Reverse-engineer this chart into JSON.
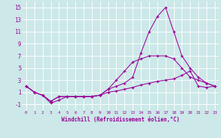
{
  "xlabel": "Windchill (Refroidissement éolien,°C)",
  "bg_color": "#cce8e8",
  "grid_color": "#ffffff",
  "line_color": "#990099",
  "xlim": [
    -0.5,
    23.5
  ],
  "ylim": [
    -2,
    16
  ],
  "xticks": [
    0,
    1,
    2,
    3,
    4,
    5,
    6,
    7,
    8,
    9,
    10,
    11,
    12,
    13,
    14,
    15,
    16,
    17,
    18,
    19,
    20,
    21,
    22,
    23
  ],
  "yticks": [
    -1,
    1,
    3,
    5,
    7,
    9,
    11,
    13,
    15
  ],
  "line1_x": [
    0,
    1,
    2,
    3,
    4,
    5,
    6,
    7,
    8,
    9,
    10,
    11,
    12,
    13,
    14,
    15,
    16,
    17,
    18,
    19,
    20,
    21,
    22,
    23
  ],
  "line1_y": [
    2,
    1,
    0.5,
    -0.5,
    0.3,
    0.3,
    0.3,
    0.3,
    0.3,
    0.5,
    1.5,
    2.0,
    2.5,
    3.5,
    7.5,
    11.0,
    13.5,
    15.0,
    11.0,
    7.0,
    5.0,
    3.5,
    2.5,
    2.0
  ],
  "line2_x": [
    0,
    1,
    2,
    3,
    4,
    5,
    6,
    7,
    8,
    9,
    10,
    11,
    12,
    13,
    14,
    15,
    16,
    17,
    18,
    19,
    20,
    21,
    22,
    23
  ],
  "line2_y": [
    2,
    1,
    0.5,
    -0.8,
    -0.3,
    0.3,
    0.3,
    0.3,
    0.3,
    0.5,
    1.5,
    3.0,
    4.5,
    6.0,
    6.5,
    7.0,
    7.0,
    7.0,
    6.5,
    5.0,
    3.5,
    3.0,
    2.5,
    2.0
  ],
  "line3_x": [
    0,
    1,
    2,
    3,
    4,
    5,
    6,
    7,
    8,
    9,
    10,
    11,
    12,
    13,
    14,
    15,
    16,
    17,
    18,
    19,
    20,
    21,
    22,
    23
  ],
  "line3_y": [
    2,
    1,
    0.5,
    -0.5,
    0.3,
    0.3,
    0.3,
    0.3,
    0.3,
    0.5,
    1.0,
    1.2,
    1.5,
    1.8,
    2.2,
    2.5,
    2.8,
    3.0,
    3.2,
    3.8,
    4.5,
    2.0,
    1.8,
    2.0
  ]
}
